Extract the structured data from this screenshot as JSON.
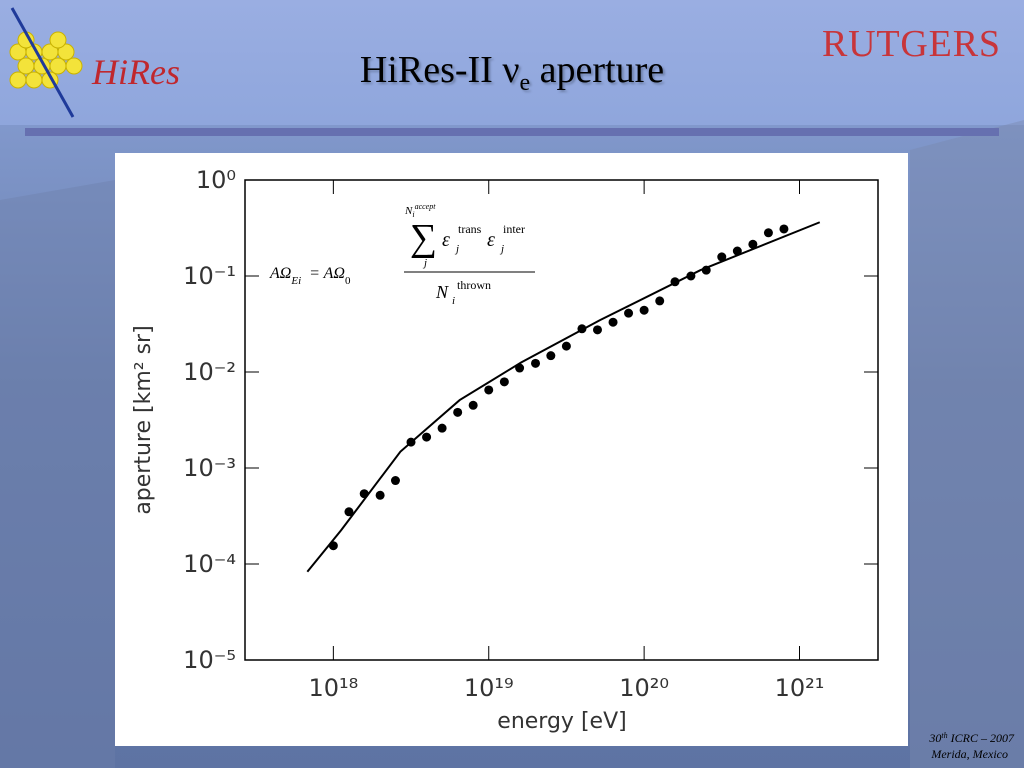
{
  "slide": {
    "title": "HiRes-II ν",
    "title_sub": "e",
    "title_rest": " aperture",
    "logo_left": "HiRes",
    "logo_right": "RUTGERS",
    "footer": {
      "number": "30",
      "sup": "th",
      "rest": " ICRC – 2007",
      "place": "Merida, Mexico"
    }
  },
  "formula": {
    "lhs": "AΩ",
    "lhs_sub": "Ei",
    "eq": "= AΩ",
    "eq_sub": "0",
    "sum": "∑",
    "sum_top": "N",
    "sum_top_sub": "i",
    "sum_top_sup": "accept",
    "sum_bottom": "j",
    "eps": "ε",
    "trans": "trans",
    "inter": "inter",
    "den": "N",
    "den_sub": "i",
    "den_sup": "thrown"
  },
  "chart_data": {
    "type": "scatter",
    "log_x": true,
    "log_y": true,
    "xlabel": "energy [eV]",
    "ylabel": "aperture [km² sr]",
    "xlim": [
      2.7e+17,
      3.2e+21
    ],
    "ylim": [
      1e-05,
      1
    ],
    "xticks": [
      {
        "value": 1e+18,
        "label": "10¹⁸"
      },
      {
        "value": 1e+19,
        "label": "10¹⁹"
      },
      {
        "value": 1e+20,
        "label": "10²⁰"
      },
      {
        "value": 1e+21,
        "label": "10²¹"
      }
    ],
    "yticks": [
      {
        "value": 1e-05,
        "label": "10⁻⁵"
      },
      {
        "value": 0.0001,
        "label": "10⁻⁴"
      },
      {
        "value": 0.001,
        "label": "10⁻³"
      },
      {
        "value": 0.01,
        "label": "10⁻²"
      },
      {
        "value": 0.1,
        "label": "10⁻¹"
      },
      {
        "value": 1,
        "label": "10⁰"
      }
    ],
    "series": [
      {
        "color": "#000000",
        "x": [
          1e+18,
          1.26e+18,
          1.58e+18,
          2e+18,
          2.51e+18,
          3.16e+18,
          3.98e+18,
          5.01e+18,
          6.31e+18,
          7.94e+18,
          1e+19,
          1.26e+19,
          1.58e+19,
          2e+19,
          2.51e+19,
          3.16e+19,
          3.98e+19,
          5.01e+19,
          6.31e+19,
          7.94e+19,
          1e+20,
          1.26e+20,
          1.58e+20,
          2e+20,
          2.51e+20,
          3.16e+20,
          3.98e+20,
          5.01e+20,
          6.31e+20,
          7.94e+20
        ],
        "values": [
          0.000155,
          0.00035,
          0.00054,
          0.00052,
          0.00074,
          0.00186,
          0.0021,
          0.0026,
          0.0038,
          0.0045,
          0.0065,
          0.0079,
          0.011,
          0.0123,
          0.0148,
          0.0186,
          0.0282,
          0.0275,
          0.033,
          0.041,
          0.044,
          0.055,
          0.087,
          0.1,
          0.115,
          0.158,
          0.182,
          0.214,
          0.282,
          0.309
        ]
      },
      {
        "color": "#000000",
        "line": true,
        "x": [
          6.8e+17,
          1.12e+18,
          2.7e+18,
          6.5e+18,
          1.62e+19,
          5.2e+19,
          2.3e+20,
          1.35e+21
        ],
        "values": [
          8.3e-05,
          0.000224,
          0.00148,
          0.0051,
          0.0126,
          0.0347,
          0.115,
          0.363
        ]
      }
    ]
  }
}
